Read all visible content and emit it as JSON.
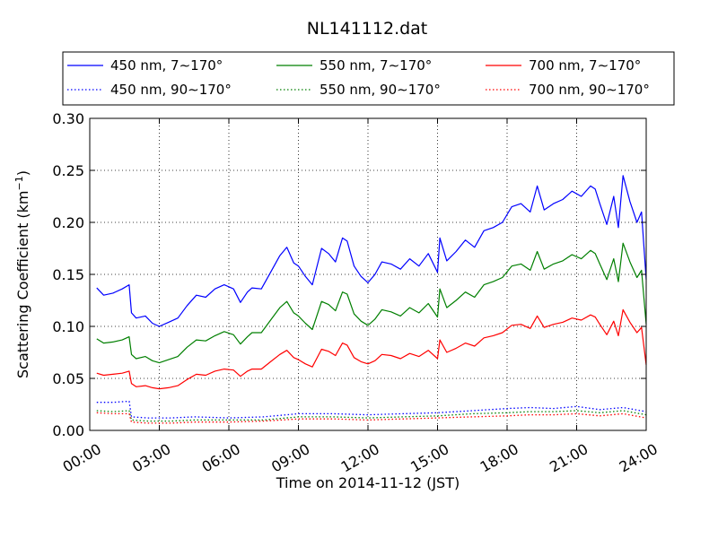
{
  "chart_data": {
    "type": "line",
    "title": "NL141112.dat",
    "xlabel": "Time on 2014-11-12 (JST)",
    "ylabel": "Scattering Coefficient (km",
    "ylabel_sup": "−1",
    "ylabel_close": ")",
    "xlim": [
      0,
      24
    ],
    "ylim": [
      0,
      0.3
    ],
    "x_ticks": [
      0,
      3,
      6,
      9,
      12,
      15,
      18,
      21,
      24
    ],
    "x_tick_labels": [
      "00:00",
      "03:00",
      "06:00",
      "09:00",
      "12:00",
      "15:00",
      "18:00",
      "21:00",
      "24:00"
    ],
    "y_ticks": [
      0.0,
      0.05,
      0.1,
      0.15,
      0.2,
      0.25,
      0.3
    ],
    "y_tick_labels": [
      "0.00",
      "0.05",
      "0.10",
      "0.15",
      "0.20",
      "0.25",
      "0.30"
    ],
    "grid": true,
    "legend_position": "top",
    "series": [
      {
        "name": "450 nm, 7∼170°",
        "color": "#0000ff",
        "style": "solid",
        "x": [
          0.3,
          0.6,
          1.0,
          1.4,
          1.7,
          1.8,
          2.0,
          2.4,
          2.7,
          3.0,
          3.4,
          3.8,
          4.2,
          4.6,
          5.0,
          5.4,
          5.8,
          6.2,
          6.5,
          6.8,
          7.0,
          7.4,
          7.8,
          8.2,
          8.5,
          8.8,
          9.0,
          9.3,
          9.6,
          10.0,
          10.3,
          10.6,
          10.9,
          11.1,
          11.4,
          11.7,
          12.0,
          12.3,
          12.6,
          13.0,
          13.4,
          13.8,
          14.2,
          14.6,
          15.0,
          15.1,
          15.4,
          15.8,
          16.2,
          16.6,
          17.0,
          17.4,
          17.8,
          18.2,
          18.6,
          19.0,
          19.3,
          19.6,
          20.0,
          20.4,
          20.8,
          21.2,
          21.6,
          21.8,
          22.0,
          22.3,
          22.6,
          22.8,
          23.0,
          23.3,
          23.6,
          23.8,
          24.0
        ],
        "y": [
          0.137,
          0.13,
          0.132,
          0.136,
          0.14,
          0.113,
          0.108,
          0.11,
          0.103,
          0.1,
          0.104,
          0.108,
          0.12,
          0.13,
          0.128,
          0.136,
          0.14,
          0.136,
          0.123,
          0.133,
          0.137,
          0.136,
          0.152,
          0.168,
          0.176,
          0.161,
          0.158,
          0.148,
          0.14,
          0.175,
          0.17,
          0.162,
          0.185,
          0.182,
          0.158,
          0.148,
          0.142,
          0.15,
          0.162,
          0.16,
          0.155,
          0.165,
          0.158,
          0.17,
          0.152,
          0.185,
          0.163,
          0.172,
          0.183,
          0.176,
          0.192,
          0.195,
          0.2,
          0.215,
          0.218,
          0.21,
          0.235,
          0.212,
          0.218,
          0.222,
          0.23,
          0.225,
          0.235,
          0.232,
          0.218,
          0.198,
          0.225,
          0.195,
          0.245,
          0.22,
          0.2,
          0.21,
          0.145
        ]
      },
      {
        "name": "550 nm, 7∼170°",
        "color": "#007f00",
        "style": "solid",
        "x": [
          0.3,
          0.6,
          1.0,
          1.4,
          1.7,
          1.8,
          2.0,
          2.4,
          2.7,
          3.0,
          3.4,
          3.8,
          4.2,
          4.6,
          5.0,
          5.4,
          5.8,
          6.2,
          6.5,
          6.8,
          7.0,
          7.4,
          7.8,
          8.2,
          8.5,
          8.8,
          9.0,
          9.3,
          9.6,
          10.0,
          10.3,
          10.6,
          10.9,
          11.1,
          11.4,
          11.7,
          12.0,
          12.3,
          12.6,
          13.0,
          13.4,
          13.8,
          14.2,
          14.6,
          15.0,
          15.1,
          15.4,
          15.8,
          16.2,
          16.6,
          17.0,
          17.4,
          17.8,
          18.2,
          18.6,
          19.0,
          19.3,
          19.6,
          20.0,
          20.4,
          20.8,
          21.2,
          21.6,
          21.8,
          22.0,
          22.3,
          22.6,
          22.8,
          23.0,
          23.3,
          23.6,
          23.8,
          24.0
        ],
        "y": [
          0.088,
          0.084,
          0.085,
          0.087,
          0.09,
          0.073,
          0.069,
          0.071,
          0.067,
          0.065,
          0.068,
          0.071,
          0.08,
          0.087,
          0.086,
          0.091,
          0.095,
          0.092,
          0.083,
          0.09,
          0.094,
          0.094,
          0.106,
          0.118,
          0.124,
          0.113,
          0.11,
          0.103,
          0.097,
          0.124,
          0.121,
          0.115,
          0.133,
          0.131,
          0.112,
          0.105,
          0.101,
          0.107,
          0.116,
          0.114,
          0.11,
          0.118,
          0.113,
          0.122,
          0.109,
          0.136,
          0.118,
          0.125,
          0.133,
          0.128,
          0.14,
          0.143,
          0.147,
          0.158,
          0.16,
          0.154,
          0.172,
          0.155,
          0.16,
          0.163,
          0.169,
          0.165,
          0.173,
          0.17,
          0.16,
          0.145,
          0.165,
          0.143,
          0.18,
          0.162,
          0.147,
          0.154,
          0.102
        ]
      },
      {
        "name": "700 nm, 7∼170°",
        "color": "#ff0000",
        "style": "solid",
        "x": [
          0.3,
          0.6,
          1.0,
          1.4,
          1.7,
          1.8,
          2.0,
          2.4,
          2.7,
          3.0,
          3.4,
          3.8,
          4.2,
          4.6,
          5.0,
          5.4,
          5.8,
          6.2,
          6.5,
          6.8,
          7.0,
          7.4,
          7.8,
          8.2,
          8.5,
          8.8,
          9.0,
          9.3,
          9.6,
          10.0,
          10.3,
          10.6,
          10.9,
          11.1,
          11.4,
          11.7,
          12.0,
          12.3,
          12.6,
          13.0,
          13.4,
          13.8,
          14.2,
          14.6,
          15.0,
          15.1,
          15.4,
          15.8,
          16.2,
          16.6,
          17.0,
          17.4,
          17.8,
          18.2,
          18.6,
          19.0,
          19.3,
          19.6,
          20.0,
          20.4,
          20.8,
          21.2,
          21.6,
          21.8,
          22.0,
          22.3,
          22.6,
          22.8,
          23.0,
          23.3,
          23.6,
          23.8,
          24.0
        ],
        "y": [
          0.055,
          0.053,
          0.054,
          0.055,
          0.057,
          0.045,
          0.042,
          0.043,
          0.041,
          0.04,
          0.041,
          0.043,
          0.049,
          0.054,
          0.053,
          0.057,
          0.059,
          0.058,
          0.052,
          0.057,
          0.059,
          0.059,
          0.066,
          0.073,
          0.077,
          0.07,
          0.068,
          0.064,
          0.061,
          0.078,
          0.076,
          0.072,
          0.084,
          0.082,
          0.07,
          0.066,
          0.064,
          0.067,
          0.073,
          0.072,
          0.069,
          0.074,
          0.071,
          0.077,
          0.069,
          0.087,
          0.075,
          0.079,
          0.084,
          0.081,
          0.089,
          0.091,
          0.094,
          0.101,
          0.102,
          0.098,
          0.11,
          0.099,
          0.102,
          0.104,
          0.108,
          0.106,
          0.111,
          0.109,
          0.102,
          0.092,
          0.105,
          0.091,
          0.116,
          0.104,
          0.094,
          0.099,
          0.063
        ]
      },
      {
        "name": "450 nm, 90∼170°",
        "color": "#0000ff",
        "style": "dotted",
        "x": [
          0.3,
          1.0,
          1.7,
          1.8,
          2.5,
          3.5,
          4.5,
          6.0,
          7.5,
          9.0,
          10.5,
          12.0,
          13.5,
          15.0,
          16.5,
          18.0,
          19.0,
          20.0,
          21.0,
          22.0,
          23.0,
          24.0
        ],
        "y": [
          0.027,
          0.027,
          0.028,
          0.013,
          0.012,
          0.012,
          0.013,
          0.012,
          0.013,
          0.016,
          0.016,
          0.015,
          0.016,
          0.017,
          0.019,
          0.021,
          0.022,
          0.021,
          0.023,
          0.02,
          0.022,
          0.018
        ]
      },
      {
        "name": "550 nm, 90∼170°",
        "color": "#007f00",
        "style": "dotted",
        "x": [
          0.3,
          1.0,
          1.7,
          1.8,
          2.5,
          3.5,
          4.5,
          6.0,
          7.5,
          9.0,
          10.5,
          12.0,
          13.5,
          15.0,
          16.5,
          18.0,
          19.0,
          20.0,
          21.0,
          22.0,
          23.0,
          24.0
        ],
        "y": [
          0.019,
          0.018,
          0.019,
          0.01,
          0.009,
          0.009,
          0.01,
          0.01,
          0.01,
          0.013,
          0.013,
          0.012,
          0.013,
          0.014,
          0.016,
          0.017,
          0.018,
          0.018,
          0.019,
          0.017,
          0.019,
          0.015
        ]
      },
      {
        "name": "700 nm, 90∼170°",
        "color": "#ff0000",
        "style": "dotted",
        "x": [
          0.3,
          1.0,
          1.7,
          1.8,
          2.5,
          3.5,
          4.5,
          6.0,
          7.5,
          9.0,
          10.5,
          12.0,
          13.5,
          15.0,
          16.5,
          18.0,
          19.0,
          20.0,
          21.0,
          22.0,
          23.0,
          24.0
        ],
        "y": [
          0.017,
          0.016,
          0.016,
          0.008,
          0.007,
          0.007,
          0.008,
          0.008,
          0.009,
          0.011,
          0.011,
          0.01,
          0.011,
          0.012,
          0.013,
          0.014,
          0.015,
          0.015,
          0.016,
          0.014,
          0.016,
          0.012
        ]
      }
    ]
  }
}
